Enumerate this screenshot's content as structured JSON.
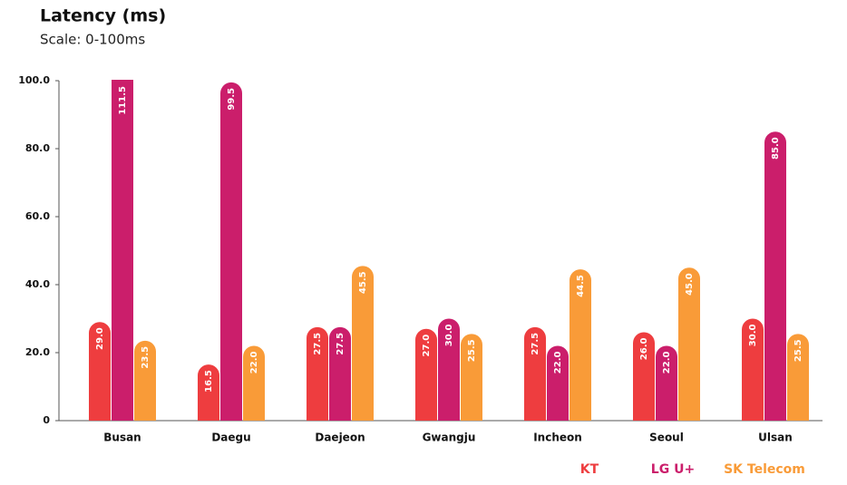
{
  "chart_data": {
    "type": "bar",
    "title": "Latency (ms)",
    "subtitle": "Scale: 0-100ms",
    "categories": [
      "Busan",
      "Daegu",
      "Daejeon",
      "Gwangju",
      "Incheon",
      "Seoul",
      "Ulsan"
    ],
    "series": [
      {
        "name": "KT",
        "color": "#ee3d3f",
        "values": [
          29,
          16.5,
          27.5,
          27,
          27.5,
          26,
          30
        ],
        "value_labels": [
          "29.0",
          "16.5",
          "27.5",
          "27.0",
          "27.5",
          "26.0",
          "30.0"
        ]
      },
      {
        "name": "LG U+",
        "color": "#cb1e6b",
        "values": [
          111.5,
          99.5,
          27.5,
          30,
          22,
          22,
          85
        ],
        "value_labels": [
          "111.5",
          "99.5",
          "27.5",
          "30.0",
          "22.0",
          "22.0",
          "85.0"
        ]
      },
      {
        "name": "SK Telecom",
        "color": "#f99b38",
        "values": [
          23.5,
          22,
          45.5,
          25.5,
          44.5,
          45,
          25.5
        ],
        "value_labels": [
          "23.5",
          "22.0",
          "45.5",
          "25.5",
          "44.5",
          "45.0",
          "25.5"
        ]
      }
    ],
    "ylim": [
      0,
      100
    ],
    "yticks": [
      0,
      {
        "value": 20,
        "label": "20.0"
      },
      {
        "value": 40,
        "label": "40.0"
      },
      {
        "value": 60,
        "label": "60.0"
      },
      {
        "value": 80,
        "label": "80.0"
      },
      {
        "value": 100,
        "label": "100.0"
      }
    ]
  }
}
